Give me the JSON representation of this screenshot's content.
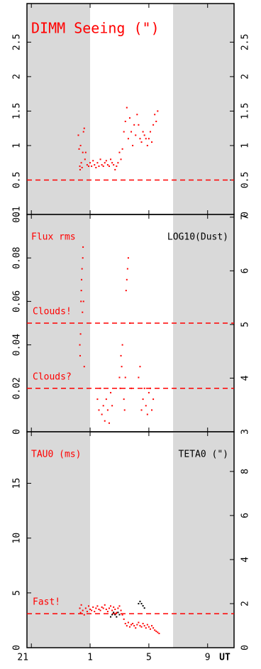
{
  "shading": [
    [
      -3.3,
      1.0
    ],
    [
      6.65,
      10.8
    ]
  ],
  "chart_data": [
    {
      "type": "scatter",
      "title": "DIMM Seeing (\")",
      "xlim": [
        -3.3,
        10.8
      ],
      "ylim": [
        0,
        3.06
      ],
      "yticks": [
        0,
        0.5,
        1,
        1.5,
        2,
        2.5
      ],
      "y2lim": [
        0,
        3.06
      ],
      "y2ticks": [
        0,
        0.5,
        1,
        1.5,
        2,
        2.5
      ],
      "thresholds": [
        {
          "value": 0.5
        }
      ],
      "series": [
        {
          "color": "#ff0000",
          "x": [
            0.2,
            0.25,
            0.3,
            0.32,
            0.35,
            0.4,
            0.45,
            0.5,
            0.55,
            0.6,
            0.65,
            0.7,
            0.8,
            0.9,
            1.0,
            1.1,
            1.2,
            1.3,
            1.4,
            1.5,
            1.6,
            1.7,
            1.8,
            1.9,
            2.0,
            2.1,
            2.2,
            2.3,
            2.4,
            2.5,
            2.6,
            2.7,
            2.8,
            2.9,
            3.0,
            3.1,
            3.2,
            3.3,
            3.4,
            3.5,
            3.6,
            3.7,
            3.8,
            3.9,
            4.0,
            4.1,
            4.2,
            4.3,
            4.4,
            4.5,
            4.6,
            4.7,
            4.8,
            4.9,
            5.0,
            5.1,
            5.2,
            5.3,
            5.4,
            5.5,
            5.6
          ],
          "values": [
            1.15,
            0.95,
            0.7,
            0.65,
            1.0,
            0.75,
            0.68,
            0.9,
            1.2,
            1.25,
            0.8,
            0.9,
            0.72,
            0.7,
            0.75,
            0.7,
            0.78,
            0.72,
            0.68,
            0.75,
            0.7,
            0.8,
            0.72,
            0.7,
            0.75,
            0.78,
            0.72,
            0.7,
            0.8,
            0.75,
            0.72,
            0.65,
            0.7,
            0.75,
            0.9,
            0.8,
            0.95,
            1.2,
            1.35,
            1.55,
            1.1,
            1.4,
            1.2,
            1.0,
            1.3,
            1.15,
            1.45,
            1.3,
            1.1,
            1.05,
            1.2,
            1.15,
            1.1,
            1.0,
            1.1,
            1.2,
            1.05,
            1.3,
            1.45,
            1.35,
            1.5
          ]
        }
      ]
    },
    {
      "type": "scatter",
      "title": "Flux rms",
      "y2_label": "LOG10(Dust)",
      "xlim": [
        -3.3,
        10.8
      ],
      "ylim": [
        0,
        0.1
      ],
      "yticks": [
        0,
        0.02,
        0.04,
        0.06,
        0.08,
        0.1
      ],
      "y2lim": [
        3,
        7.05
      ],
      "y2ticks": [
        3,
        4,
        5,
        6,
        7
      ],
      "thresholds": [
        {
          "value": 0.05,
          "label": "Clouds!"
        },
        {
          "value": 0.02,
          "label": "Clouds?"
        }
      ],
      "series": [
        {
          "color": "#ff0000",
          "x": [
            0.3,
            0.32,
            0.35,
            0.38,
            0.4,
            0.42,
            0.45,
            0.48,
            0.5,
            0.52,
            0.55,
            0.6,
            1.5,
            1.6,
            1.7,
            1.8,
            1.9,
            2.0,
            2.1,
            2.2,
            2.3,
            2.4,
            2.5,
            3.0,
            3.05,
            3.1,
            3.15,
            3.2,
            3.3,
            3.35,
            3.4,
            3.45,
            3.5,
            3.55,
            3.6,
            3.7,
            3.8,
            4.3,
            4.4,
            4.5,
            4.6,
            4.7,
            4.8,
            4.9,
            5.0,
            5.1,
            5.2,
            5.3
          ],
          "values": [
            0.04,
            0.035,
            0.045,
            0.06,
            0.065,
            0.07,
            0.075,
            0.055,
            0.08,
            0.085,
            0.06,
            0.03,
            0.015,
            0.01,
            0.02,
            0.008,
            0.012,
            0.005,
            0.015,
            0.01,
            0.004,
            0.018,
            0.012,
            0.025,
            0.02,
            0.035,
            0.03,
            0.04,
            0.015,
            0.01,
            0.025,
            0.065,
            0.07,
            0.075,
            0.08,
            0.05,
            0.02,
            0.025,
            0.03,
            0.01,
            0.015,
            0.02,
            0.012,
            0.008,
            0.018,
            0.02,
            0.01,
            0.015
          ]
        }
      ]
    },
    {
      "type": "scatter",
      "title": "TAU0 (ms)",
      "y2_label": "TETA0 (\")",
      "x_label": "UT",
      "xlim": [
        -3.3,
        10.8
      ],
      "xticks": [
        {
          "value": -3,
          "label": "21"
        },
        1,
        5,
        9
      ],
      "ylim": [
        0,
        19.7
      ],
      "yticks": [
        0,
        5,
        10,
        15
      ],
      "y2lim": [
        0,
        9.8
      ],
      "y2ticks": [
        0,
        2,
        4,
        6,
        8
      ],
      "thresholds": [
        {
          "value": 3.1,
          "label": "Fast!"
        }
      ],
      "series": [
        {
          "color": "#ff0000",
          "x": [
            0.3,
            0.35,
            0.4,
            0.5,
            0.6,
            0.7,
            0.8,
            0.9,
            1.0,
            1.1,
            1.2,
            1.3,
            1.4,
            1.5,
            1.6,
            1.7,
            1.8,
            1.9,
            2.0,
            2.1,
            2.2,
            2.3,
            2.4,
            2.5,
            2.6,
            2.7,
            2.8,
            2.9,
            3.0,
            3.1,
            3.2,
            3.3,
            3.4,
            3.5,
            3.6,
            3.7,
            3.8,
            3.9,
            4.0,
            4.1,
            4.2,
            4.3,
            4.4,
            4.5,
            4.6,
            4.7,
            4.8,
            4.9,
            5.0,
            5.1,
            5.2,
            5.3,
            5.4,
            5.5,
            5.6,
            5.7
          ],
          "values": [
            3.6,
            3.2,
            3.9,
            3.4,
            3.0,
            3.6,
            3.3,
            3.8,
            3.5,
            3.4,
            3.7,
            3.3,
            3.6,
            3.8,
            3.5,
            3.4,
            3.7,
            3.6,
            3.9,
            3.5,
            3.3,
            3.6,
            3.8,
            3.4,
            3.7,
            3.5,
            3.2,
            3.6,
            3.8,
            3.4,
            3.0,
            2.6,
            2.2,
            2.0,
            2.3,
            1.9,
            2.1,
            2.2,
            2.0,
            1.8,
            2.1,
            2.3,
            2.0,
            1.9,
            2.2,
            2.0,
            1.8,
            2.1,
            1.9,
            1.7,
            2.0,
            1.8,
            1.6,
            1.5,
            1.4,
            1.3
          ]
        },
        {
          "color": "#000000",
          "axis": "y2",
          "x": [
            2.4,
            2.5,
            2.6,
            2.7,
            2.8,
            2.9,
            3.0,
            4.3,
            4.4,
            4.5,
            4.6,
            4.7
          ],
          "values": [
            1.4,
            1.5,
            1.6,
            1.5,
            1.4,
            1.6,
            1.5,
            2.0,
            2.1,
            2.0,
            1.9,
            1.8
          ]
        }
      ]
    }
  ]
}
